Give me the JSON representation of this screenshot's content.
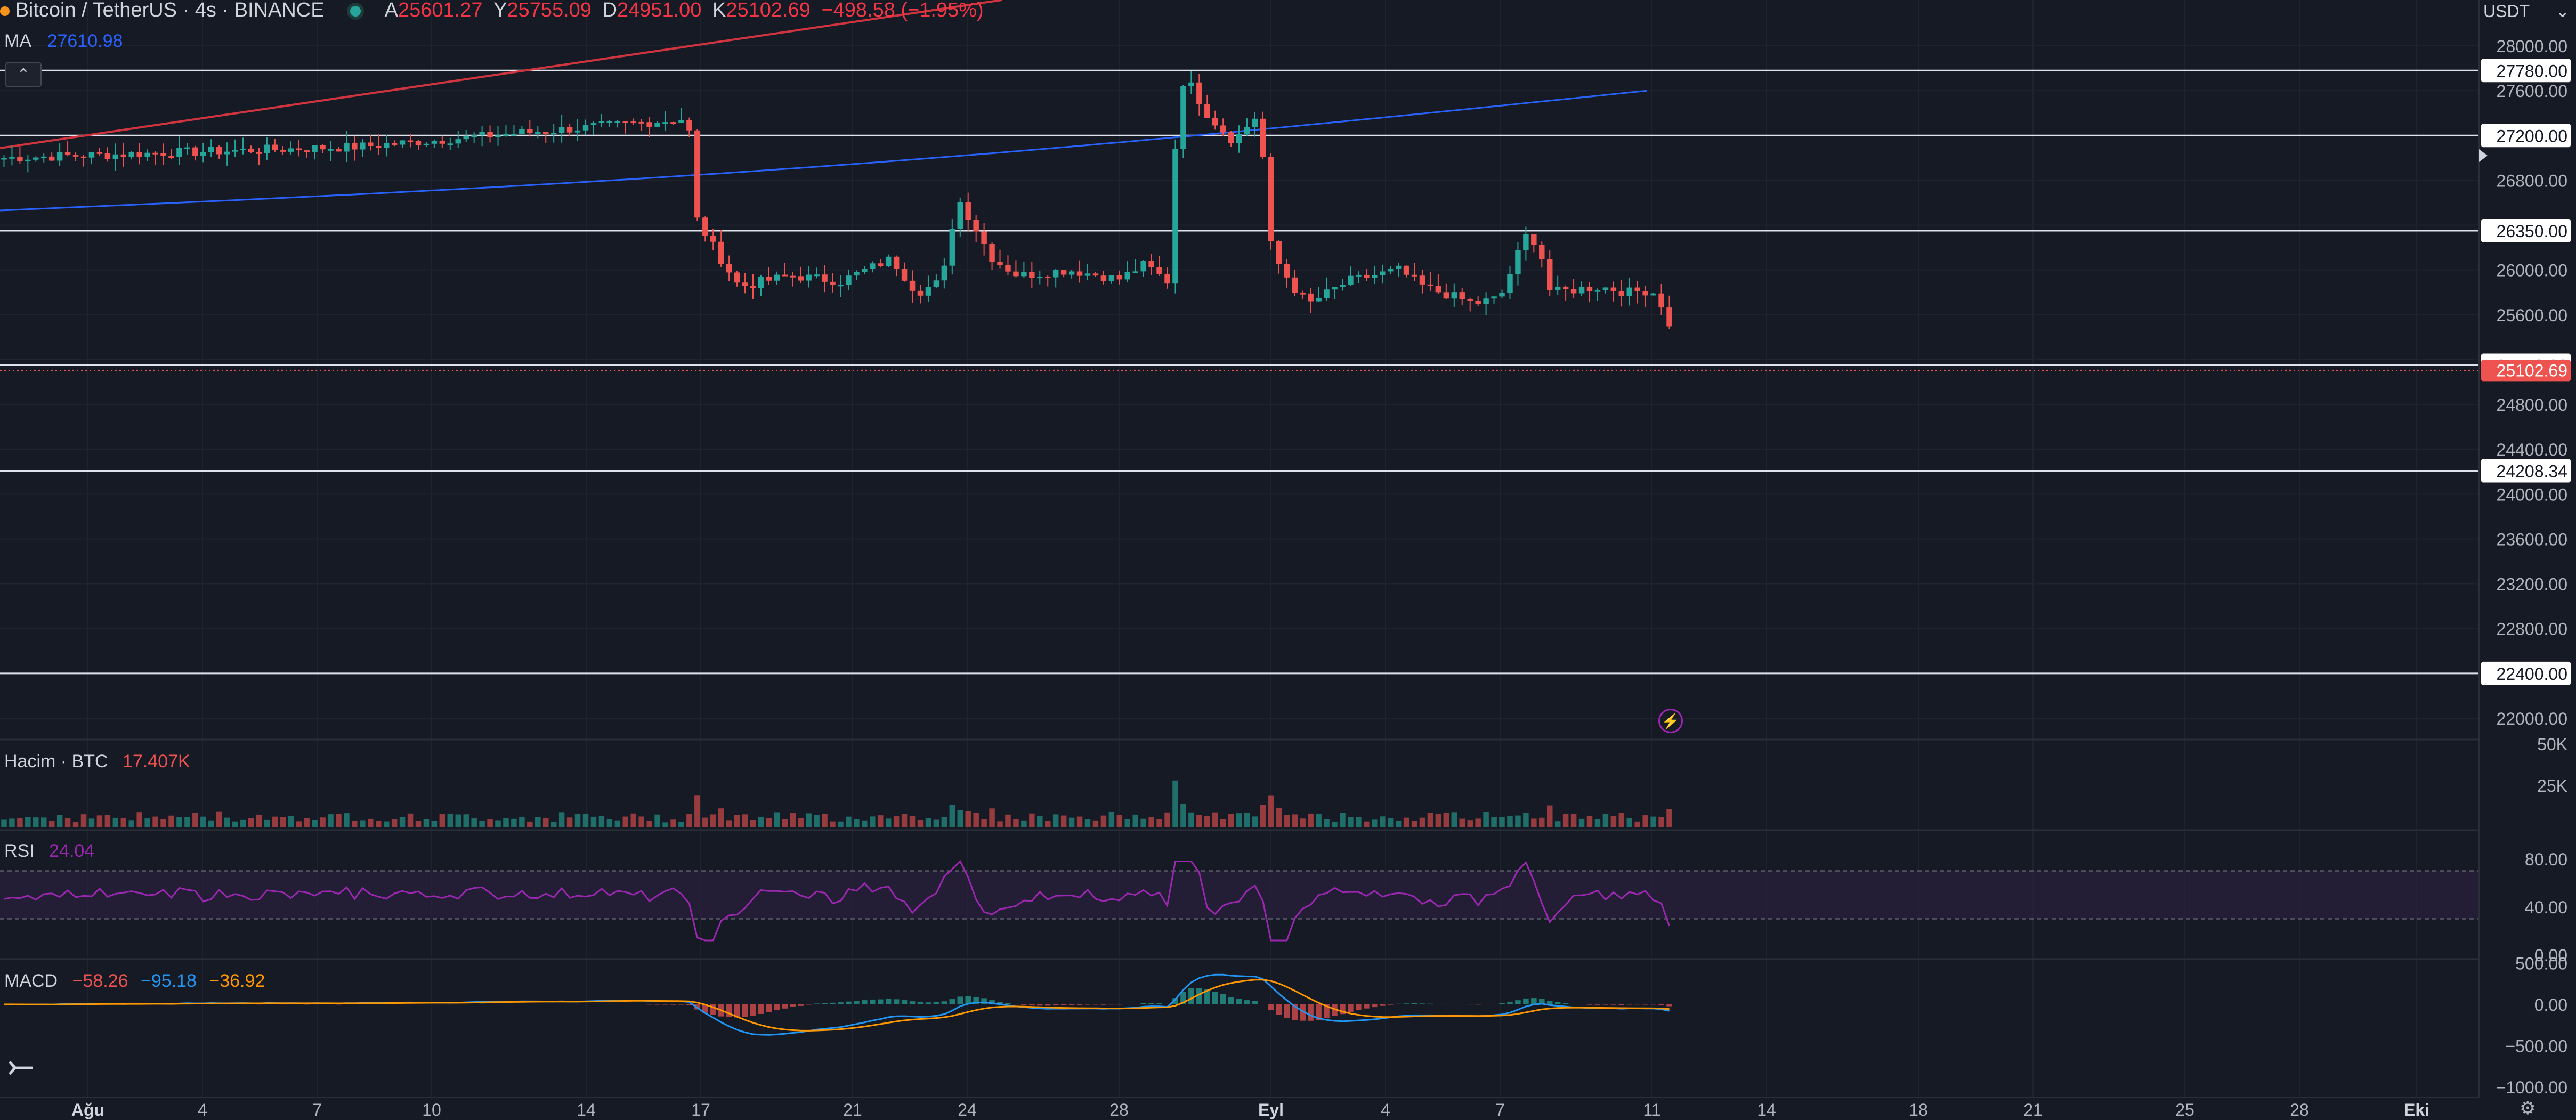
{
  "header": {
    "symbol_title": "Bitcoin / TetherUS · 4s · BINANCE",
    "open_label": "A",
    "open": "25601.27",
    "high_label": "Y",
    "high": "25755.09",
    "low_label": "D",
    "low": "24951.00",
    "close_label": "K",
    "close": "25102.69",
    "change": "−498.58 (−1.95%)"
  },
  "ma": {
    "label": "MA",
    "value": "27610.98"
  },
  "currency": "USDT",
  "volume_legend": {
    "label": "Hacim · BTC",
    "value": "17.407K"
  },
  "rsi_legend": {
    "label": "RSI",
    "value": "24.04"
  },
  "macd_legend": {
    "label": "MACD",
    "v1": "−58.26",
    "v2": "−95.18",
    "v3": "−36.92"
  },
  "colors": {
    "background": "#161a25",
    "up": "#26a69a",
    "down": "#ef5350",
    "ma": "#2962ff",
    "trend": "#d0343f",
    "rsi": "#9c27b0",
    "macd": "#2196f3",
    "signal": "#ff9800"
  },
  "icons": [
    "exchange-logo-icon",
    "live-dot-icon",
    "collapse-chevron-icon",
    "tradingview-logo-icon",
    "flash-icon",
    "settings-icon",
    "dropdown-icon",
    "scroll-right-icon"
  ],
  "chart_data": {
    "type": "candlestick",
    "y_axis": {
      "min": 22000,
      "max": 28000,
      "ticks": [
        "28000.00",
        "27600.00",
        "26800.00",
        "26000.00",
        "25600.00",
        "24800.00",
        "24400.00",
        "24000.00",
        "23600.00",
        "23200.00",
        "22800.00",
        "22000.00"
      ]
    },
    "x_axis": {
      "ticks": [
        "Ağu",
        "4",
        "7",
        "10",
        "14",
        "17",
        "21",
        "24",
        "28",
        "Eyl",
        "4",
        "7",
        "11",
        "14",
        "18",
        "21",
        "25",
        "28",
        "Eki"
      ]
    },
    "horizontal_levels": [
      "27780.00",
      "27200.00",
      "26350.00",
      "25150.00",
      "24208.34",
      "22400.00"
    ],
    "last_price": "25102.69",
    "anchors": [
      [
        0,
        27000
      ],
      [
        14,
        27100
      ],
      [
        27,
        27350
      ],
      [
        27.2,
        26500
      ],
      [
        28,
        26200
      ],
      [
        29,
        25850
      ],
      [
        31,
        25950
      ],
      [
        33,
        25900
      ],
      [
        35,
        26100
      ],
      [
        36,
        25800
      ],
      [
        37,
        25900
      ],
      [
        37.6,
        26650
      ],
      [
        38,
        26500
      ],
      [
        39,
        26100
      ],
      [
        40,
        25950
      ],
      [
        42,
        26000
      ],
      [
        44,
        25920
      ],
      [
        45,
        26050
      ],
      [
        46,
        25880
      ],
      [
        46.3,
        27700
      ],
      [
        46.8,
        27650
      ],
      [
        47.5,
        27380
      ],
      [
        48.5,
        27150
      ],
      [
        49.5,
        27400
      ],
      [
        50,
        26150
      ],
      [
        51,
        25800
      ],
      [
        51.5,
        25700
      ],
      [
        53,
        25900
      ],
      [
        55,
        26000
      ],
      [
        56,
        25850
      ],
      [
        58,
        25700
      ],
      [
        59,
        25750
      ],
      [
        60,
        26300
      ],
      [
        60.5,
        26250
      ],
      [
        61,
        25800
      ],
      [
        63,
        25850
      ],
      [
        64,
        25800
      ],
      [
        65,
        25820
      ],
      [
        65.5,
        25650
      ],
      [
        66,
        25200
      ]
    ],
    "volume": {
      "ticks": [
        "50K",
        "25K"
      ]
    },
    "rsi": {
      "ticks": [
        "80.00",
        "40.00",
        "0.00"
      ],
      "upper": 70,
      "lower": 30
    },
    "macd": {
      "ticks": [
        "500.00",
        "0.00",
        "−500.00",
        "−1000.00"
      ]
    }
  }
}
